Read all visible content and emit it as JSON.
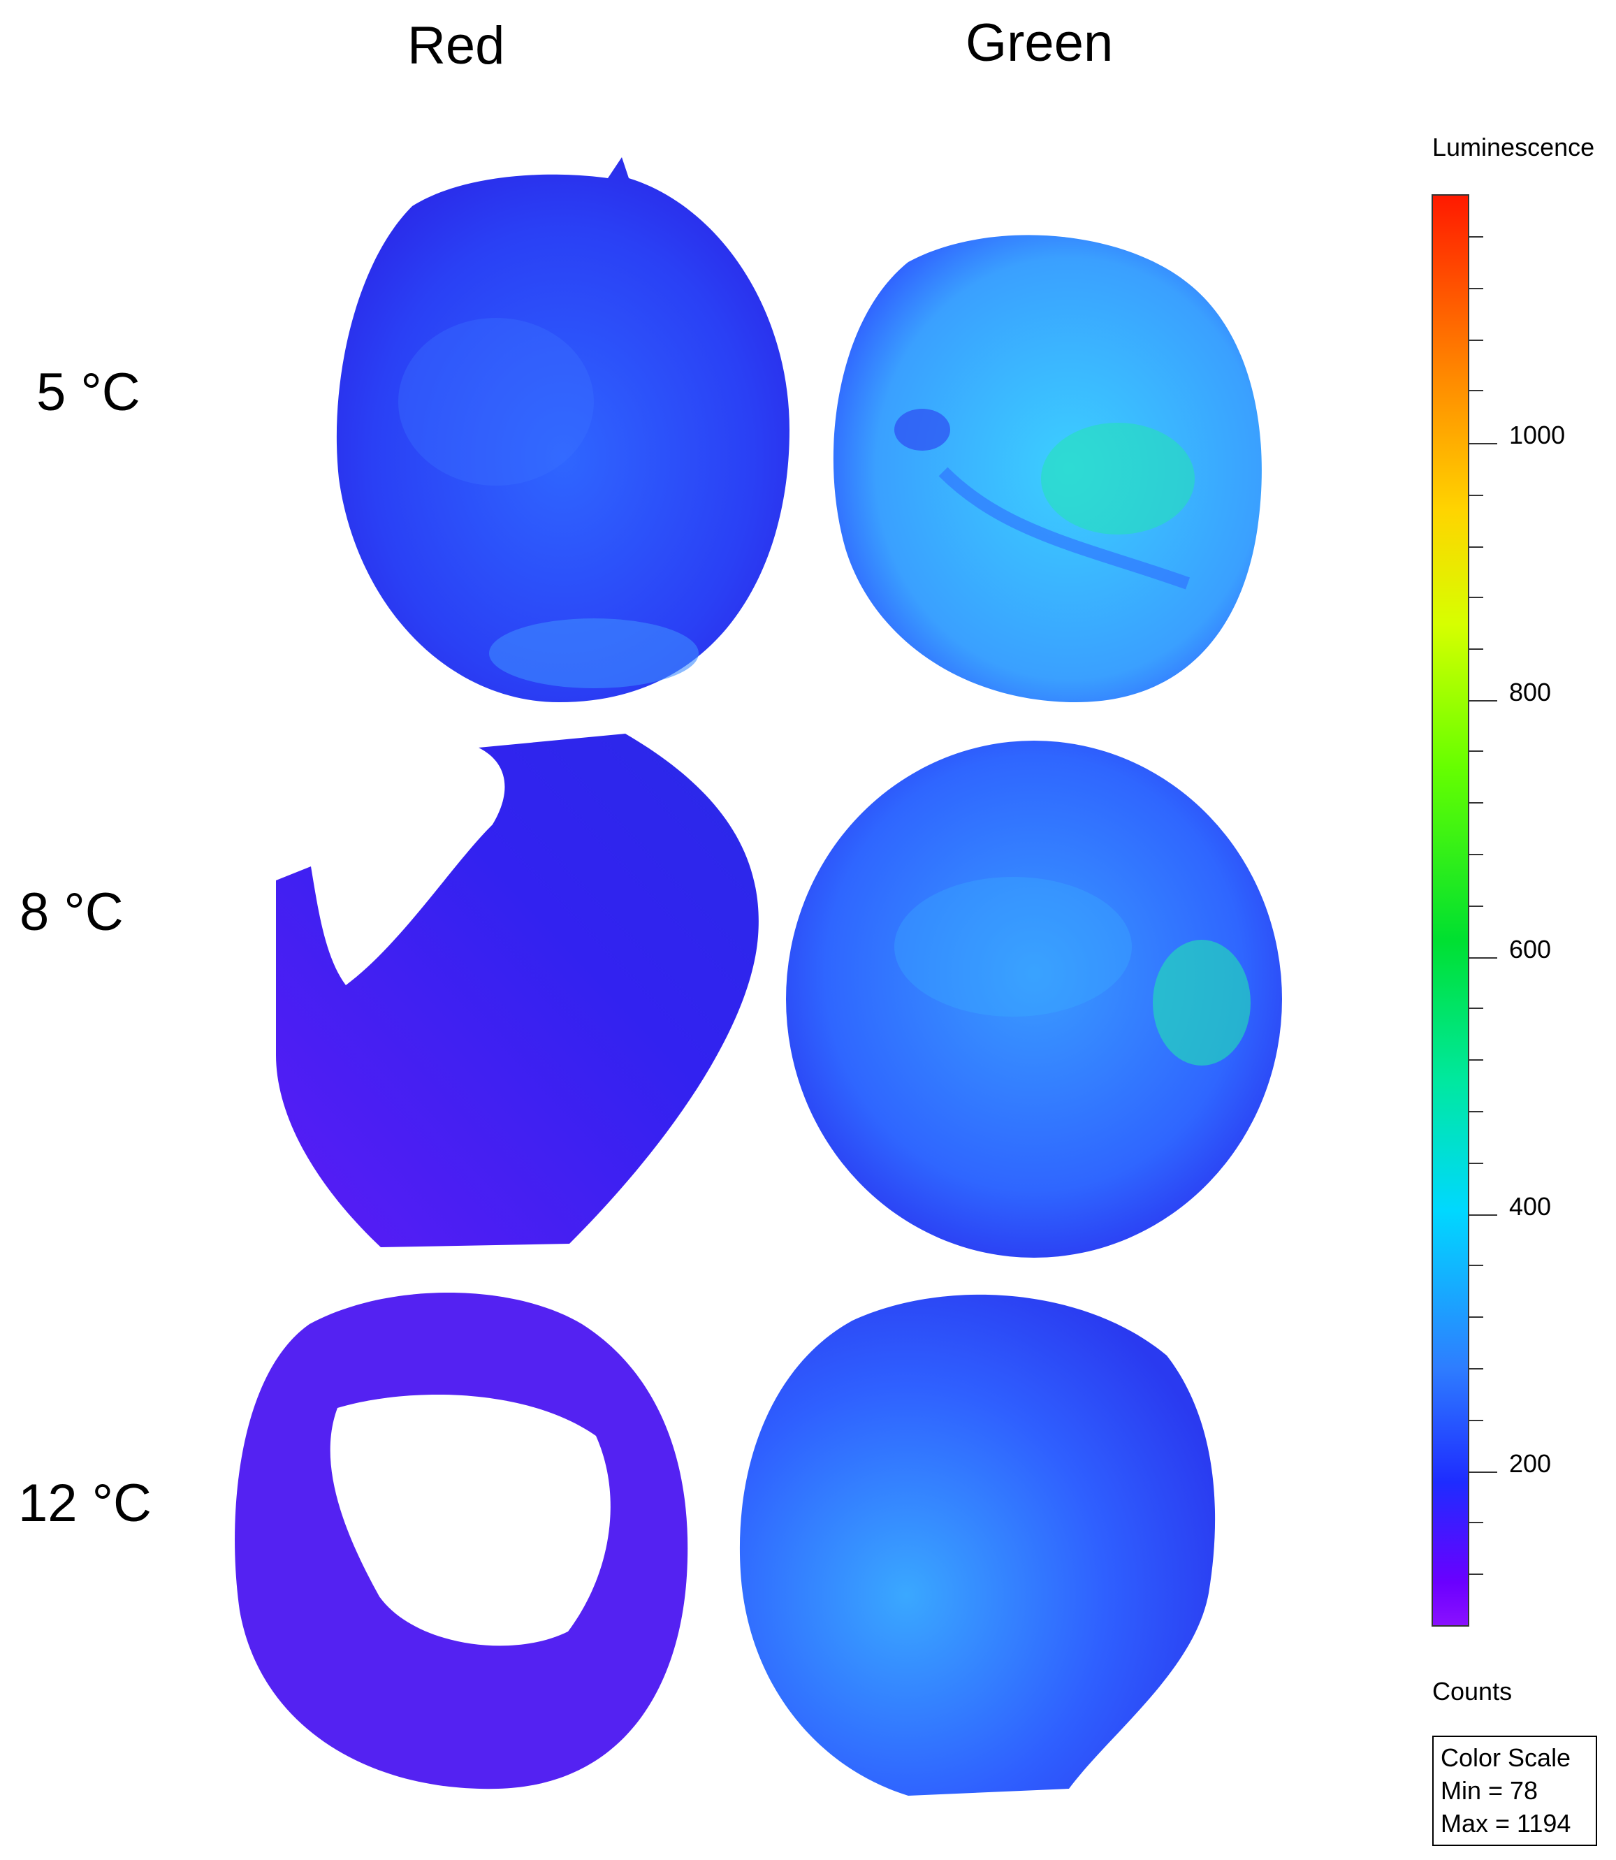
{
  "columns": {
    "red": "Red",
    "green": "Green"
  },
  "rows": {
    "r5": "5 °C",
    "r8": "8 °C",
    "r12": "12 °C"
  },
  "colorbar": {
    "title": "Luminescence",
    "units": "Counts",
    "ticks": [
      "1000",
      "800",
      "600",
      "400",
      "200"
    ],
    "gradient_colors": [
      "#ff1a00",
      "#ff8c00",
      "#ffd400",
      "#66ff00",
      "#00e030",
      "#00d8ff",
      "#2e7dff",
      "#1e2cff",
      "#8a10ff"
    ]
  },
  "legend_box": {
    "line1": "Color Scale",
    "line2": "Min = 78",
    "line3": "Max = 1194"
  },
  "colors": {
    "deep_blue": "#2a28f0",
    "mid_blue": "#2e5cff",
    "light_blue": "#3aa8ff",
    "cyan_green": "#22e6b0",
    "violet": "#7a1cf5"
  }
}
